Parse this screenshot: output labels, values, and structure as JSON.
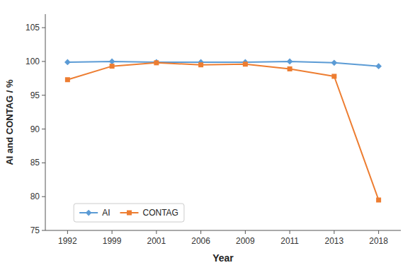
{
  "chart_data": {
    "type": "line",
    "categories": [
      "1992",
      "1999",
      "2001",
      "2006",
      "2009",
      "2011",
      "2013",
      "2018"
    ],
    "series": [
      {
        "name": "AI",
        "color": "#5B9BD5",
        "marker": "diamond",
        "values": [
          99.9,
          100.0,
          99.9,
          99.9,
          99.9,
          100.0,
          99.8,
          99.3
        ]
      },
      {
        "name": "CONTAG",
        "color": "#ED7D31",
        "marker": "square",
        "values": [
          97.3,
          99.3,
          99.8,
          99.5,
          99.6,
          98.9,
          97.8,
          79.5
        ]
      }
    ],
    "xlabel": "Year",
    "ylabel": "AI and CONTAG / %",
    "ylim": [
      75,
      107
    ],
    "yticks": [
      75,
      80,
      85,
      90,
      95,
      100,
      105
    ],
    "grid": false,
    "legend": "lower left"
  }
}
